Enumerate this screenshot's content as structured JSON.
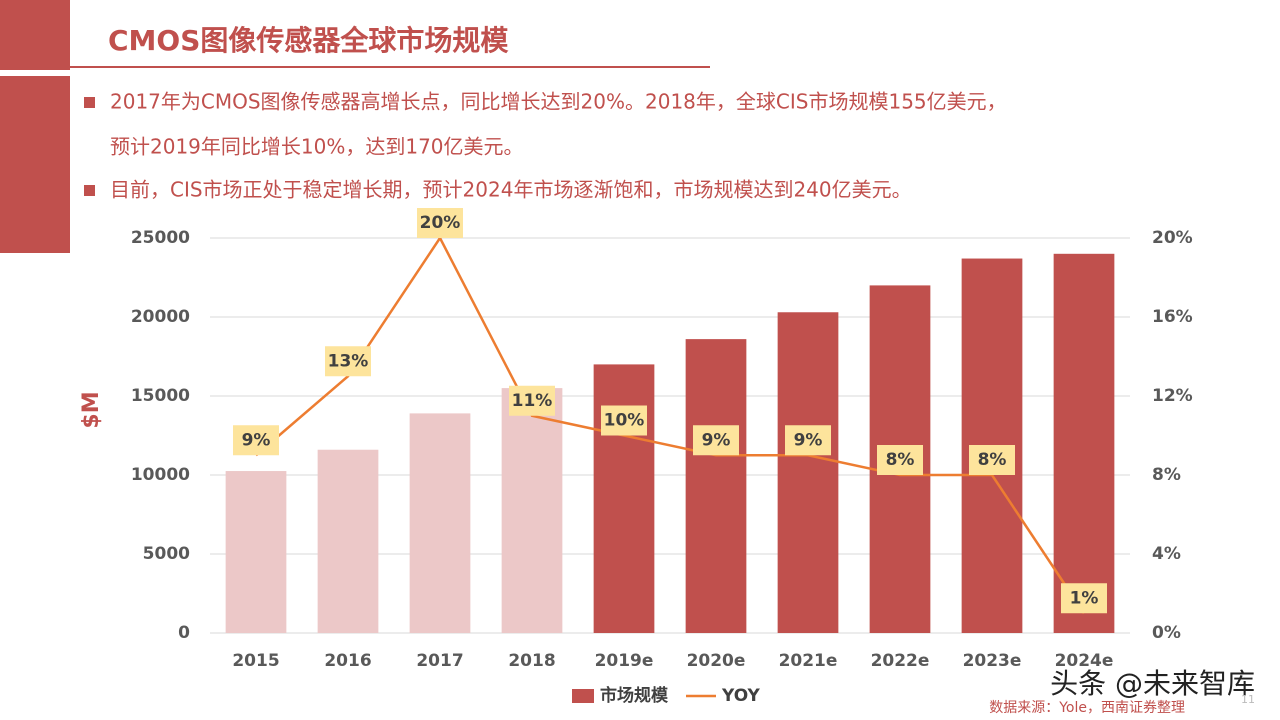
{
  "header": {
    "title": "CMOS图像传感器全球市场规模"
  },
  "bullets": [
    "2017年为CMOS图像传感器高增长点，同比增长达到20%。2018年，全球CIS市场规模155亿美元，",
    "预计2019年同比增长10%，达到170亿美元。",
    "目前，CIS市场正处于稳定增长期，预计2024年市场逐渐饱和，市场规模达到240亿美元。"
  ],
  "chart_data": {
    "type": "bar-line",
    "categories": [
      "2015",
      "2016",
      "2017",
      "2018",
      "2019e",
      "2020e",
      "2021e",
      "2022e",
      "2023e",
      "2024e"
    ],
    "y_label": "$M",
    "series": [
      {
        "name": "市场规模",
        "type": "bar",
        "color": "#c0504d",
        "colors": [
          "#ecc8c8",
          "#ecc8c8",
          "#ecc8c8",
          "#ecc8c8",
          "#c0504d",
          "#c0504d",
          "#c0504d",
          "#c0504d",
          "#c0504d",
          "#c0504d"
        ],
        "values": [
          10250,
          11600,
          13900,
          15500,
          17000,
          18600,
          20300,
          22000,
          23700,
          24000
        ]
      },
      {
        "name": "YOY",
        "type": "line",
        "axis": "y2",
        "color": "#ed7d31",
        "values": [
          9,
          13,
          20,
          11,
          10,
          9,
          9,
          8,
          8,
          1
        ],
        "value_labels": [
          "9%",
          "13%",
          "20%",
          "11%",
          "10%",
          "9%",
          "9%",
          "8%",
          "8%",
          "1%"
        ]
      }
    ],
    "ylim": [
      0,
      25000
    ],
    "yticks": [
      0,
      5000,
      10000,
      15000,
      20000,
      25000
    ],
    "y2lim": [
      0,
      20
    ],
    "y2ticks": [
      {
        "value": 0,
        "label": "0%"
      },
      {
        "value": 4,
        "label": "4%"
      },
      {
        "value": 8,
        "label": "8%"
      },
      {
        "value": 12,
        "label": "12%"
      },
      {
        "value": 16,
        "label": "16%"
      },
      {
        "value": 20,
        "label": "20%"
      }
    ],
    "grid": true,
    "legend": "bottom"
  },
  "footer": {
    "source": "数据来源：Yole，西南证券整理",
    "watermark": "头条 @未来智库",
    "page": "11"
  }
}
